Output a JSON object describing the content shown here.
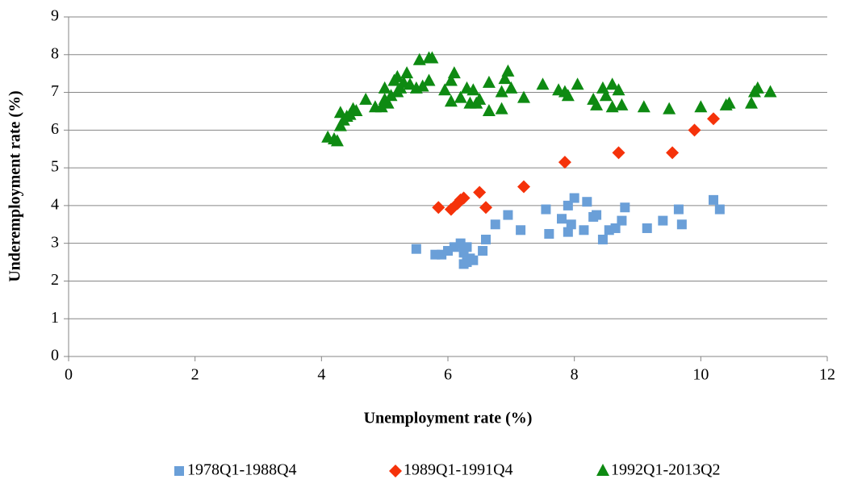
{
  "chart_data": {
    "type": "scatter",
    "xlabel": "Unemployment rate (%)",
    "ylabel": "Underemployment rate (%)",
    "xlim": [
      0,
      12
    ],
    "xticks": [
      0,
      2,
      4,
      6,
      8,
      10,
      12
    ],
    "ylim": [
      0,
      9
    ],
    "yticks": [
      0,
      1,
      2,
      3,
      4,
      5,
      6,
      7,
      8,
      9
    ],
    "grid": true,
    "legend": "bottom",
    "series": [
      {
        "name": "1978Q1-1988Q4",
        "color": "#6a9fd8",
        "marker": "square",
        "x": [
          5.5,
          5.8,
          5.9,
          6.0,
          6.1,
          6.2,
          6.25,
          6.3,
          6.35,
          6.25,
          6.4,
          6.3,
          6.55,
          6.6,
          6.75,
          6.95,
          7.15,
          7.55,
          7.6,
          7.8,
          7.9,
          7.95,
          7.9,
          8.0,
          8.15,
          8.2,
          8.3,
          8.35,
          8.45,
          8.55,
          8.65,
          8.75,
          8.8,
          9.15,
          9.4,
          9.65,
          9.7,
          10.2,
          10.3
        ],
        "values": [
          2.85,
          2.7,
          2.7,
          2.8,
          2.9,
          3.0,
          2.75,
          2.5,
          2.6,
          2.45,
          2.55,
          2.9,
          2.8,
          3.1,
          3.5,
          3.75,
          3.35,
          3.9,
          3.25,
          3.65,
          3.3,
          3.5,
          4.0,
          4.2,
          3.35,
          4.1,
          3.7,
          3.75,
          3.1,
          3.35,
          3.4,
          3.6,
          3.95,
          3.4,
          3.6,
          3.9,
          3.5,
          4.15,
          3.9
        ]
      },
      {
        "name": "1989Q1-1991Q4",
        "color": "#f5320a",
        "marker": "diamond",
        "x": [
          5.85,
          6.05,
          6.15,
          6.2,
          6.25,
          6.5,
          6.6,
          7.2,
          7.85,
          8.7,
          9.55,
          9.9,
          10.2
        ],
        "values": [
          3.95,
          3.9,
          4.05,
          4.15,
          4.2,
          4.35,
          3.95,
          4.5,
          5.15,
          5.4,
          5.4,
          6.0,
          6.3
        ]
      },
      {
        "name": "1992Q1-2013Q2",
        "color": "#0e8a12",
        "marker": "triangle",
        "x": [
          4.1,
          4.2,
          4.25,
          4.3,
          4.3,
          4.35,
          4.4,
          4.45,
          4.5,
          4.55,
          4.7,
          4.85,
          4.95,
          5.0,
          5.0,
          5.05,
          5.1,
          5.15,
          5.2,
          5.2,
          5.25,
          5.3,
          5.35,
          5.4,
          5.5,
          5.55,
          5.6,
          5.7,
          5.7,
          5.75,
          5.95,
          6.05,
          6.05,
          6.1,
          6.2,
          6.3,
          6.35,
          6.4,
          6.45,
          6.5,
          6.65,
          6.65,
          6.85,
          6.85,
          6.9,
          6.95,
          7.0,
          7.2,
          7.5,
          7.75,
          7.85,
          7.9,
          8.05,
          8.3,
          8.35,
          8.45,
          8.5,
          8.6,
          8.6,
          8.7,
          8.75,
          9.1,
          9.5,
          10.0,
          10.4,
          10.45,
          10.8,
          10.85,
          10.9,
          11.1
        ],
        "values": [
          5.8,
          5.75,
          5.7,
          6.45,
          6.1,
          6.25,
          6.35,
          6.4,
          6.55,
          6.5,
          6.8,
          6.6,
          6.6,
          7.1,
          6.8,
          6.7,
          6.9,
          7.3,
          7.0,
          7.4,
          7.1,
          7.25,
          7.5,
          7.2,
          7.1,
          7.85,
          7.15,
          7.9,
          7.3,
          7.9,
          7.05,
          6.75,
          7.3,
          7.5,
          6.85,
          7.1,
          6.7,
          7.05,
          6.7,
          6.8,
          7.25,
          6.5,
          6.55,
          7.0,
          7.35,
          7.55,
          7.1,
          6.85,
          7.2,
          7.05,
          7.0,
          6.9,
          7.2,
          6.8,
          6.65,
          7.1,
          6.9,
          7.2,
          6.6,
          7.05,
          6.65,
          6.6,
          6.55,
          6.6,
          6.65,
          6.7,
          6.7,
          7.0,
          7.1,
          7.0
        ]
      }
    ]
  }
}
